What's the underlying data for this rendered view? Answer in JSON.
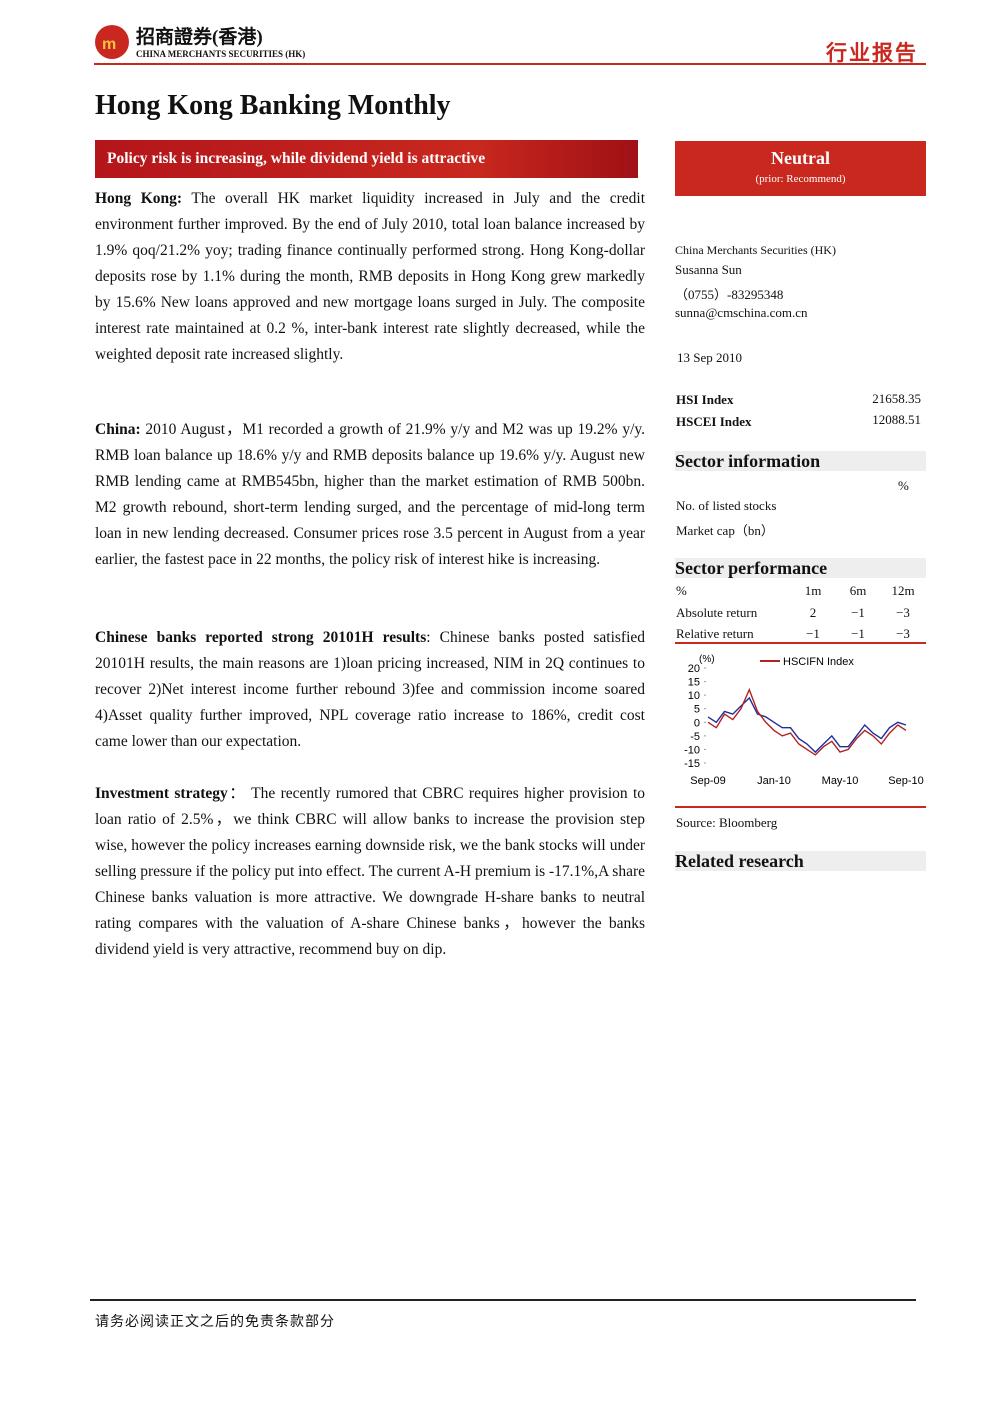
{
  "header": {
    "logo_cn": "招商證券(香港)",
    "logo_en": "CHINA MERCHANTS SECURITIES (HK)",
    "report_type": "行业报告"
  },
  "title": "Hong Kong Banking Monthly",
  "banner": "Policy risk is increasing, while dividend yield is attractive",
  "paragraphs": [
    {
      "lead": "Hong Kong:",
      "text": " The overall HK market liquidity increased in July and the credit environment further improved. By the end of July 2010, total loan balance increased by 1.9% qoq/21.2% yoy; trading finance continually performed strong. Hong Kong-dollar deposits rose by 1.1% during the month, RMB deposits in Hong Kong grew markedly by 15.6% New loans approved and new mortgage loans surged in July. The composite interest rate maintained at 0.2 %, inter-bank interest rate slightly decreased, while the weighted deposit rate increased slightly."
    },
    {
      "lead": "China:",
      "text": " 2010 August，M1 recorded a growth of 21.9% y/y and M2 was up 19.2% y/y. RMB loan balance up 18.6% y/y and RMB deposits balance up 19.6% y/y. August new RMB lending came at RMB545bn, higher than the market estimation of RMB 500bn. M2 growth rebound, short-term lending surged, and the percentage of mid-long term loan in new lending decreased. Consumer prices rose 3.5 percent in August from a year earlier, the fastest pace in 22 months, the policy risk of interest hike is increasing."
    },
    {
      "lead": "Chinese banks reported strong 20101H results",
      "text": ": Chinese banks posted satisfied 20101H results, the main reasons are 1)loan pricing increased, NIM in 2Q continues to recover 2)Net interest income further rebound 3)fee and commission income soared 4)Asset quality further improved, NPL coverage ratio increase to 186%, credit cost came lower than our expectation."
    },
    {
      "lead": "Investment strategy",
      "text": "： The recently rumored that CBRC requires higher provision to loan ratio of 2.5%，we think CBRC will allow banks to increase the provision step wise, however the policy increases earning downside risk, we the bank stocks will under selling pressure if the policy put into effect. The current A-H premium is -17.1%,A share Chinese banks valuation is more attractive. We downgrade H-share banks to neutral rating compares with the valuation of A-share Chinese banks，however the banks dividend yield is very attractive, recommend buy on dip."
    }
  ],
  "rating": {
    "title": "Neutral",
    "prior": "(prior:   Recommend)"
  },
  "analyst": {
    "firm": "China Merchants Securities (HK)",
    "name": "Susanna Sun",
    "phone": "（0755）-83295348",
    "email": "sunna@cmschina.com.cn",
    "date": "13 Sep 2010"
  },
  "indices": [
    {
      "name": "HSI Index",
      "value": "21658.35"
    },
    {
      "name": "HSCEI Index",
      "value": "12088.51"
    }
  ],
  "sector_info": {
    "title": "Sector  information",
    "unit": "%",
    "rows": [
      "No. of listed stocks",
      "Market cap（bn）"
    ]
  },
  "sector_perf": {
    "title": "Sector  performance",
    "header": [
      "%",
      "1m",
      "6m",
      "12m"
    ],
    "rows": [
      [
        "Absolute return",
        "2",
        "−1",
        "−3"
      ],
      [
        "Relative return",
        "−1",
        "−1",
        "−3"
      ]
    ]
  },
  "chart_data": {
    "type": "line",
    "ylabel": "(%)",
    "categories": [
      "Sep-09",
      null,
      null,
      null,
      null,
      null,
      null,
      null,
      "Jan-10",
      null,
      null,
      null,
      null,
      null,
      null,
      null,
      "May-10",
      null,
      null,
      null,
      null,
      null,
      null,
      null,
      "Sep-10"
    ],
    "series": [
      {
        "name": "HSCIFN Index",
        "color": "#b22222",
        "values": [
          0,
          -2,
          3,
          1,
          5,
          12,
          4,
          0,
          -3,
          -5,
          -4,
          -8,
          -10,
          -12,
          -9,
          -7,
          -11,
          -10,
          -6,
          -3,
          -5,
          -8,
          -4,
          -1,
          -3
        ]
      },
      {
        "color": "#1f2f9a",
        "values": [
          2,
          0,
          4,
          3,
          6,
          9,
          3,
          2,
          0,
          -2,
          -2,
          -6,
          -8,
          -11,
          -8,
          -5,
          -9,
          -9,
          -5,
          -1,
          -4,
          -6,
          -2,
          0,
          -1
        ]
      }
    ],
    "ylim": [
      -15,
      20
    ],
    "yticks": [
      20,
      15,
      10,
      5,
      0,
      -5,
      -10,
      -15
    ]
  },
  "source": "Source:   Bloomberg",
  "related": "Related research",
  "footer": "请务必阅读正文之后的免责条款部分"
}
